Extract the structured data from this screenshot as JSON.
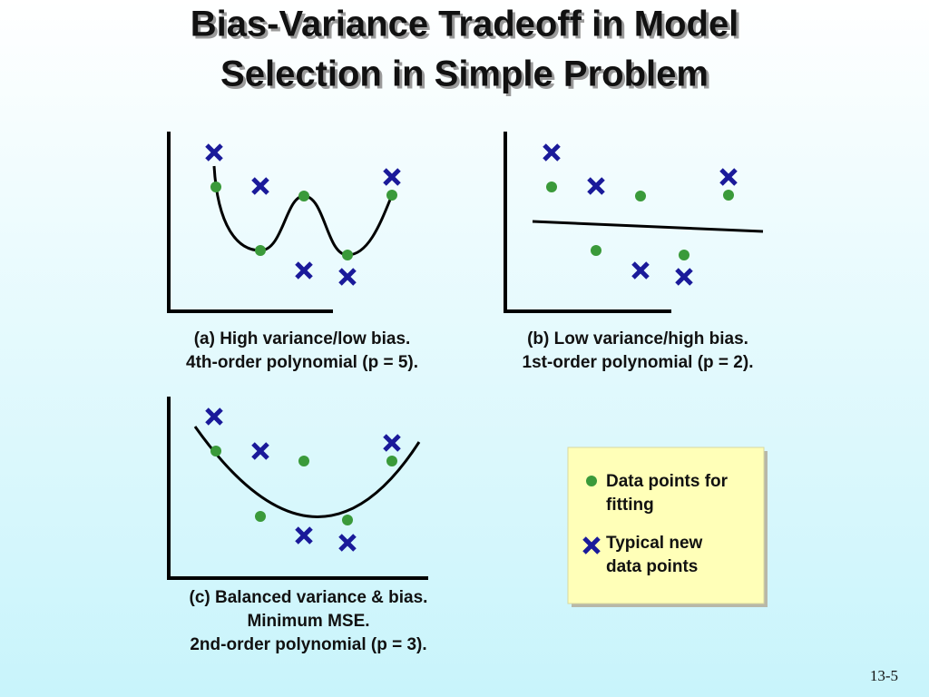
{
  "title": [
    "Bias-Variance Tradeoff in Model",
    "Selection in Simple Problem"
  ],
  "panels": [
    {
      "caption": [
        "(a) High variance/low bias.",
        "4th-order polynomial (p = 5)."
      ]
    },
    {
      "caption": [
        "(b) Low variance/high bias.",
        "1st-order polynomial (p = 2)."
      ]
    },
    {
      "caption": [
        "(c) Balanced variance & bias.",
        "Minimum MSE.",
        "2nd-order polynomial (p = 3)."
      ]
    }
  ],
  "legend": {
    "items": [
      [
        "Data points for",
        "fitting"
      ],
      [
        "Typical new",
        "data points"
      ]
    ]
  },
  "page_number": "13-5"
}
